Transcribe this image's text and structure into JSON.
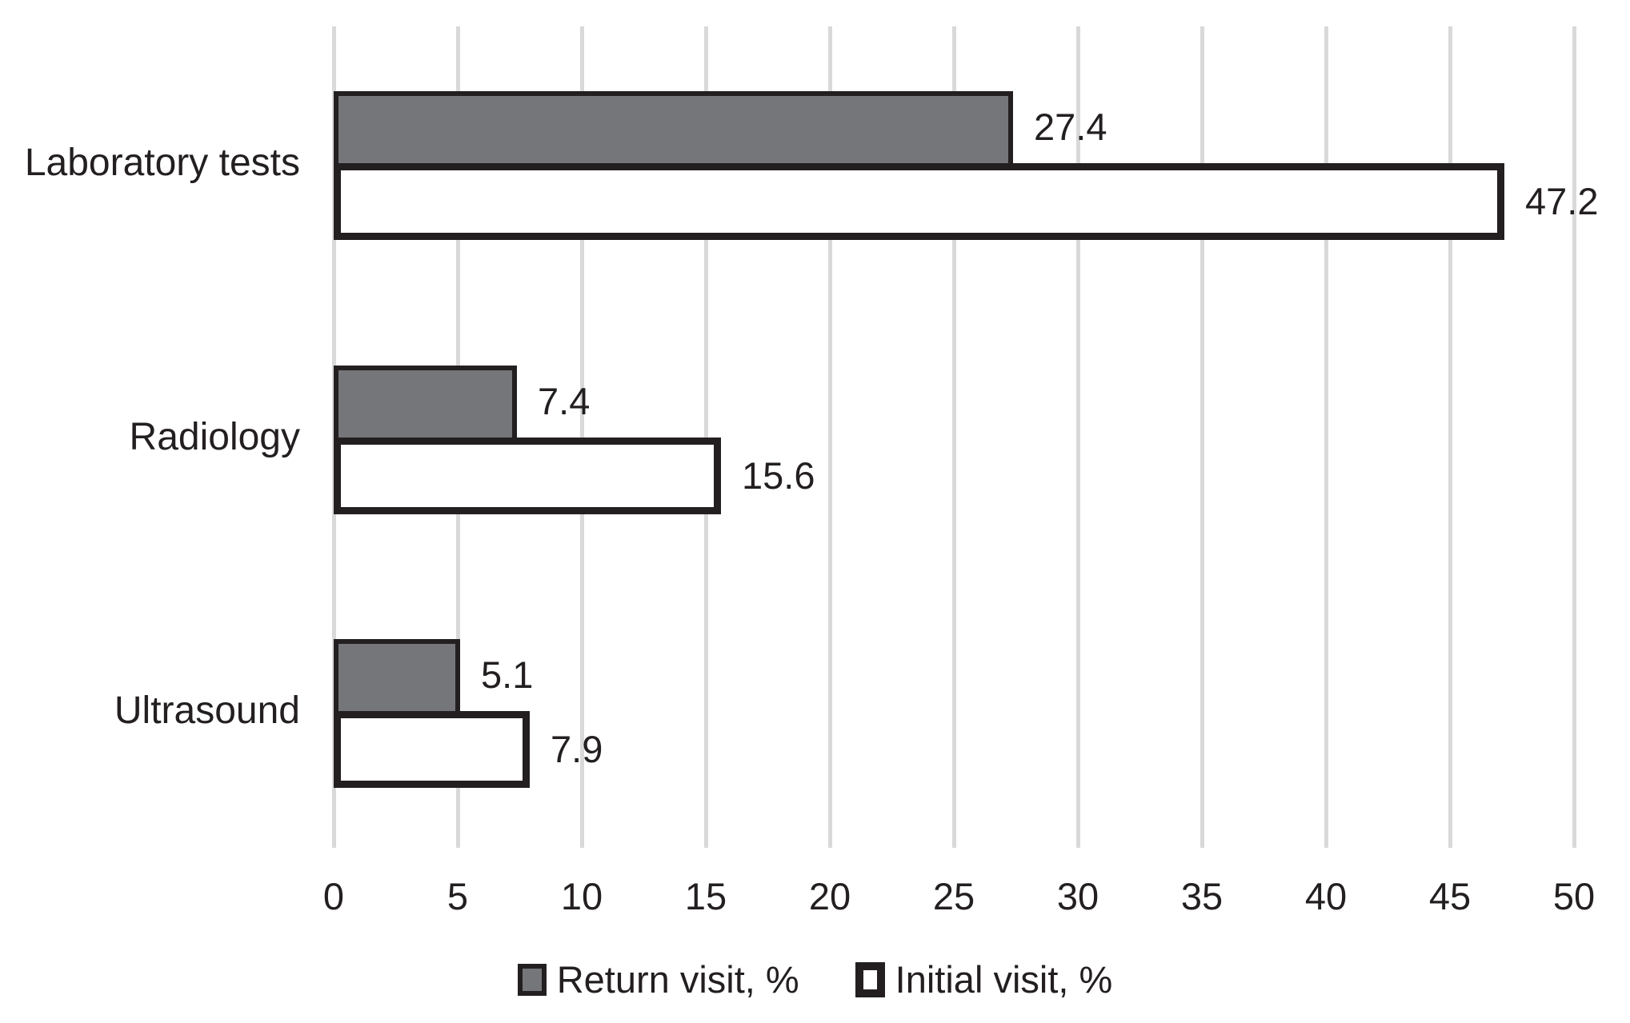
{
  "chart_data": {
    "type": "bar",
    "orientation": "horizontal",
    "title": "",
    "xlabel": "",
    "ylabel": "",
    "categories": [
      "Laboratory tests",
      "Radiology",
      "Ultrasound"
    ],
    "series": [
      {
        "name": "Return visit, %",
        "values": [
          27.4,
          7.4,
          5.1
        ],
        "labels": [
          "27.4",
          "7.4",
          "5.1"
        ],
        "fill": "#75767a",
        "border_color": "#231f20"
      },
      {
        "name": "Initial visit, %",
        "values": [
          47.2,
          15.6,
          7.9
        ],
        "labels": [
          "47.2",
          "15.6",
          "7.9"
        ],
        "fill": "#ffffff",
        "border_color": "#231f20"
      }
    ],
    "xlim": [
      0,
      50
    ],
    "xticks": [
      0,
      5,
      10,
      15,
      20,
      25,
      30,
      35,
      40,
      45,
      50
    ],
    "grid": true,
    "gridline_color": "#d9d9d9",
    "legend_position": "bottom-center",
    "text_color": "#231f20",
    "background_color": "#ffffff",
    "data_labels_shown": true
  }
}
